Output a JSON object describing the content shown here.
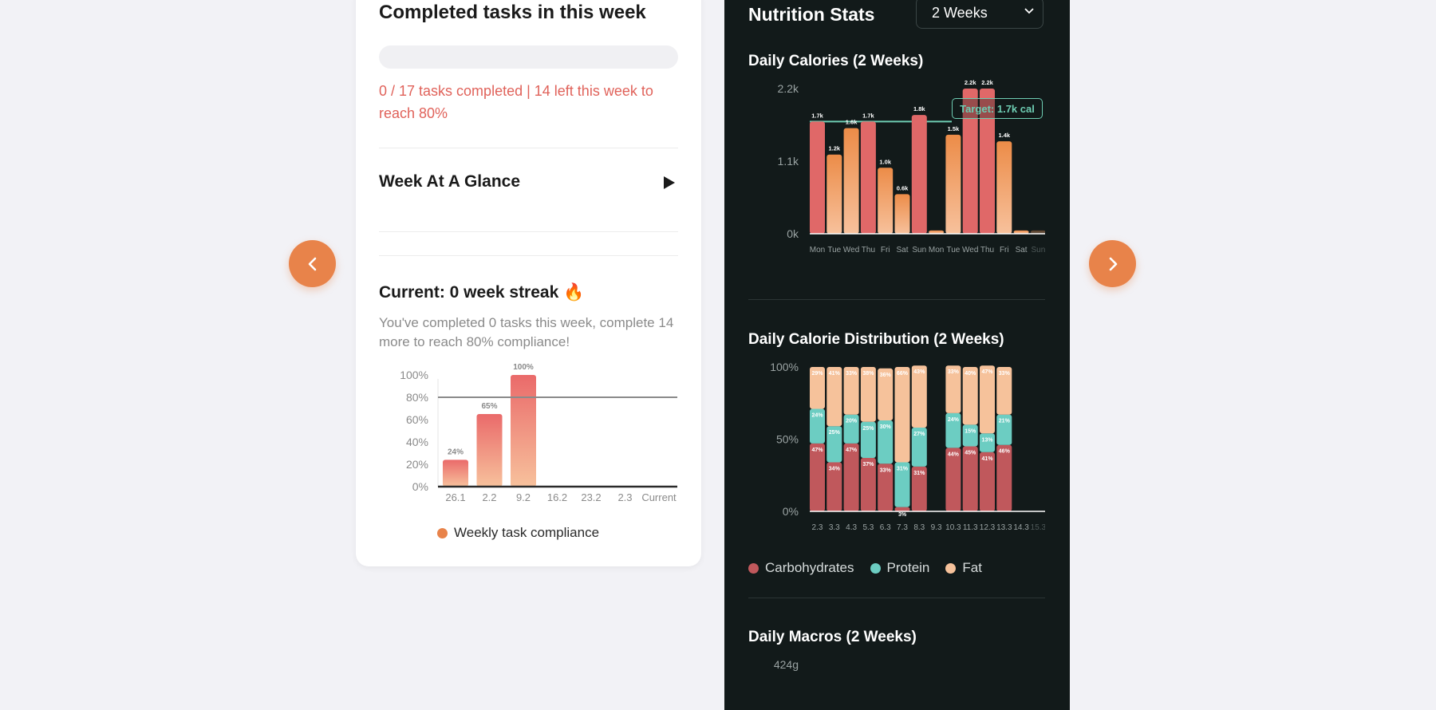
{
  "nav": {
    "prev_label": "previous",
    "next_label": "next"
  },
  "left": {
    "title": "Completed tasks in this week",
    "progress": {
      "completed": 0,
      "total": 17,
      "fraction": 0.0
    },
    "progress_text": "0 / 17 tasks completed | 14 left this week to reach 80%",
    "glance_title": "Week At A Glance",
    "streak_title": "Current: 0 week streak 🔥",
    "streak_text": "You've completed 0 tasks this week, complete 14 more to reach 80% compliance!",
    "legend_label": "Weekly task compliance"
  },
  "right": {
    "title": "Nutrition Stats",
    "period_select": "2 Weeks",
    "calories_title": "Daily Calories (2 Weeks)",
    "target_label": "Target: 1.7k cal",
    "distribution_title": "Daily Calorie Distribution (2 Weeks)",
    "macros_title": "Daily Macros (2 Weeks)",
    "legend": [
      {
        "label": "Carbohydrates",
        "color": "#c0585c"
      },
      {
        "label": "Protein",
        "color": "#6ccdc2"
      },
      {
        "label": "Fat",
        "color": "#f6c29b"
      }
    ]
  },
  "chart_data": [
    {
      "type": "bar",
      "categories": [
        "26.1",
        "2.2",
        "9.2",
        "16.2",
        "23.2",
        "2.3",
        "Current"
      ],
      "values": [
        24,
        65,
        100,
        0,
        0,
        0,
        0
      ],
      "data_labels": [
        "24%",
        "65%",
        "100%",
        "",
        "",
        "",
        ""
      ],
      "y_ticks": [
        "0%",
        "20%",
        "40%",
        "60%",
        "80%",
        "100%"
      ],
      "ylim": [
        0,
        100
      ],
      "target_line": 80,
      "legend": "Weekly task compliance",
      "colors": {
        "top": "#ea6a6a",
        "bottom": "#f7c19c"
      }
    },
    {
      "type": "bar",
      "title": "Daily Calories (2 Weeks)",
      "categories": [
        "Mon",
        "Tue",
        "Wed",
        "Thu",
        "Fri",
        "Sat",
        "Sun",
        "Mon",
        "Tue",
        "Wed",
        "Thu",
        "Fri",
        "Sat",
        "Sun"
      ],
      "values": [
        1700,
        1200,
        1600,
        1700,
        1000,
        600,
        1800,
        50,
        1500,
        2200,
        2200,
        1400,
        50,
        50
      ],
      "data_labels": [
        "1.7k",
        "1.2k",
        "1.6k",
        "1.7k",
        "1.0k",
        "0.6k",
        "1.8k",
        "",
        "1.5k",
        "2.2k",
        "2.2k",
        "1.4k",
        "",
        ""
      ],
      "over_target": [
        true,
        false,
        false,
        true,
        false,
        false,
        true,
        false,
        false,
        true,
        true,
        false,
        false,
        false
      ],
      "y_ticks": [
        "0k",
        "1.1k",
        "2.2k"
      ],
      "ylim": [
        0,
        2200
      ],
      "target": 1700,
      "colors": {
        "over": "#e06868",
        "under_top": "#ec8c48",
        "under_bottom": "#f7c19c"
      }
    },
    {
      "type": "bar",
      "title": "Daily Calorie Distribution (2 Weeks)",
      "stacked": true,
      "categories": [
        "2.3",
        "3.3",
        "4.3",
        "5.3",
        "6.3",
        "7.3",
        "8.3",
        "9.3",
        "10.3",
        "11.3",
        "12.3",
        "13.3",
        "14.3",
        "15.3"
      ],
      "y_ticks": [
        "0%",
        "50%",
        "100%"
      ],
      "ylim": [
        0,
        100
      ],
      "series": [
        {
          "name": "Carbohydrates",
          "values": [
            47,
            34,
            47,
            37,
            33,
            3,
            31,
            0,
            44,
            45,
            41,
            46,
            0,
            0
          ]
        },
        {
          "name": "Protein",
          "values": [
            24,
            25,
            20,
            25,
            30,
            31,
            27,
            0,
            24,
            15,
            13,
            21,
            0,
            0
          ]
        },
        {
          "name": "Fat",
          "values": [
            29,
            41,
            33,
            38,
            36,
            66,
            43,
            0,
            33,
            40,
            47,
            33,
            0,
            0
          ]
        }
      ]
    },
    {
      "type": "bar",
      "title": "Daily Macros (2 Weeks)",
      "y_ticks": [
        "424g"
      ],
      "ylim": [
        0,
        424
      ]
    }
  ]
}
